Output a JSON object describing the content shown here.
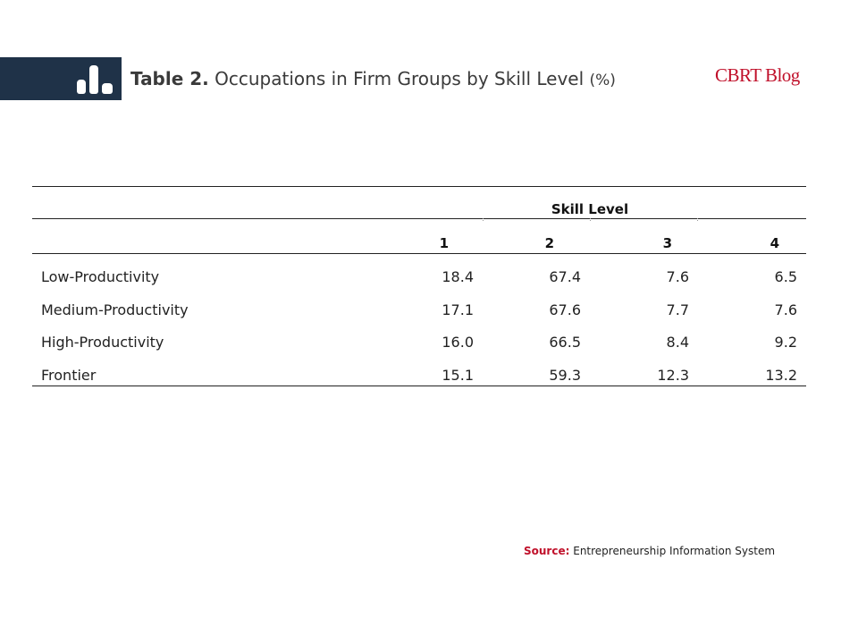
{
  "header": {
    "title_prefix": "Table 2.",
    "title_text": "Occupations in Firm Groups by Skill Level",
    "title_unit": "(%)",
    "brand": "CBRT Blog",
    "logo_icon": "bar-chart-icon"
  },
  "table": {
    "group_header": "Skill Level",
    "columns": [
      "1",
      "2",
      "3",
      "4"
    ],
    "rows": [
      {
        "label": "Low-Productivity",
        "values": [
          "18.4",
          "67.4",
          "7.6",
          "6.5"
        ]
      },
      {
        "label": "Medium-Productivity",
        "values": [
          "17.1",
          "67.6",
          "7.7",
          "7.6"
        ]
      },
      {
        "label": "High-Productivity",
        "values": [
          "16.0",
          "66.5",
          "8.4",
          "9.2"
        ]
      },
      {
        "label": "Frontier",
        "values": [
          "15.1",
          "59.3",
          "12.3",
          "13.2"
        ]
      }
    ]
  },
  "footer": {
    "source_label": "Source:",
    "source_text": "Entrepreneurship Information System"
  },
  "colors": {
    "header_bar": "#1f3248",
    "brand": "#c0102a"
  }
}
